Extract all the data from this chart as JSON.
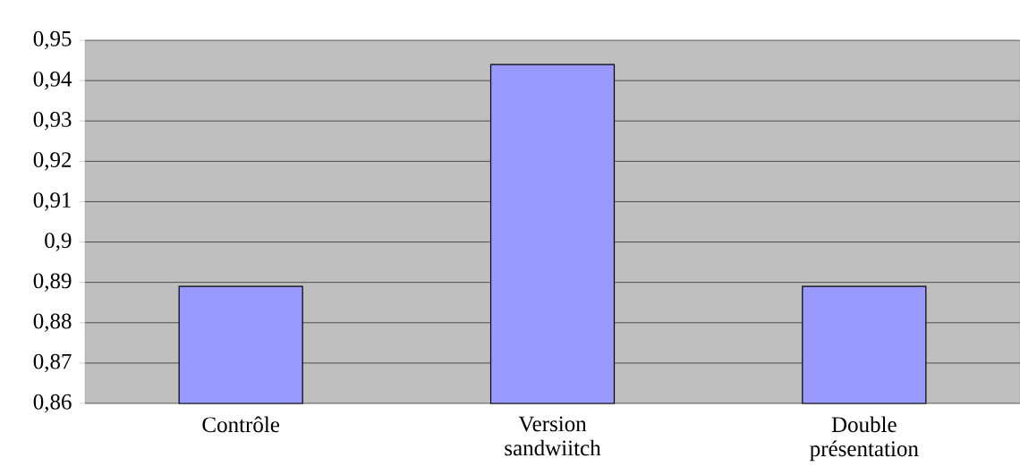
{
  "chart_data": {
    "type": "bar",
    "categories": [
      "Contrôle",
      "Version sandwiitch",
      "Double présentation"
    ],
    "values": [
      0.889,
      0.944,
      0.889
    ],
    "color": "#9999ff",
    "ylim": [
      0.86,
      0.95
    ],
    "yticks": [
      {
        "value": 0.86,
        "label": "0,86"
      },
      {
        "value": 0.87,
        "label": "0,87"
      },
      {
        "value": 0.88,
        "label": "0,88"
      },
      {
        "value": 0.89,
        "label": "0,89"
      },
      {
        "value": 0.9,
        "label": "0,9"
      },
      {
        "value": 0.91,
        "label": "0,91"
      },
      {
        "value": 0.92,
        "label": "0,92"
      },
      {
        "value": 0.93,
        "label": "0,93"
      },
      {
        "value": 0.94,
        "label": "0,94"
      },
      {
        "value": 0.95,
        "label": "0,95"
      }
    ],
    "grid": "y",
    "legend": false
  }
}
